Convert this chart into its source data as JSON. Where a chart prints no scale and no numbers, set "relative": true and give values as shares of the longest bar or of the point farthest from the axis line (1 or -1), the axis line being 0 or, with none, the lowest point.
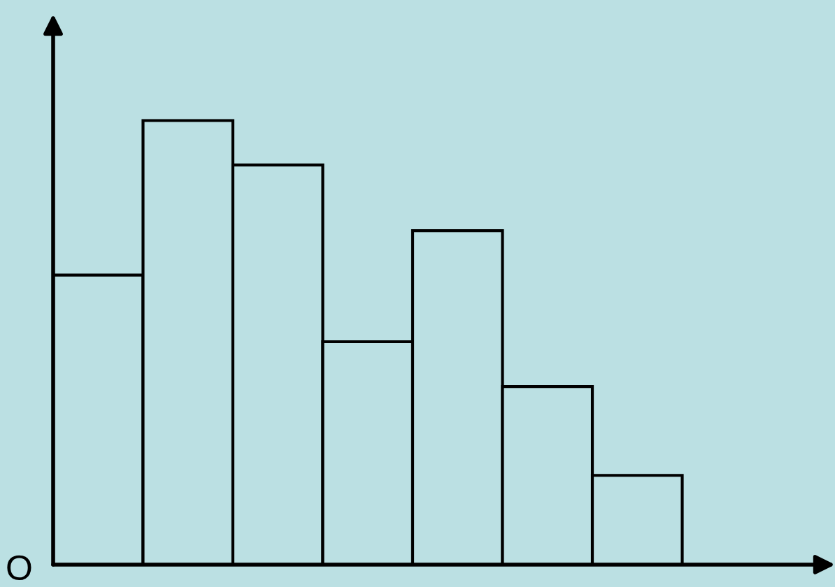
{
  "chart_data": {
    "type": "bar",
    "relative": true,
    "categories": [
      null,
      null,
      null,
      null,
      null,
      null,
      null
    ],
    "values": [
      0.652,
      1,
      0.9,
      0.502,
      0.752,
      0.401,
      0.201
    ],
    "color": "#bbe0e3",
    "annotations": [
      "O"
    ]
  }
}
